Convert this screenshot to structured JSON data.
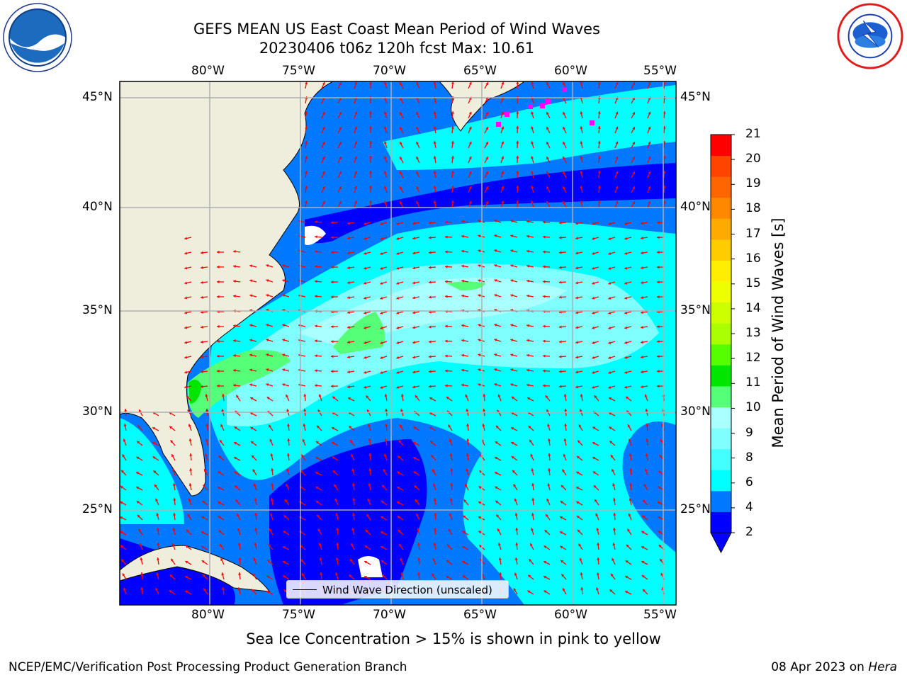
{
  "header": {
    "title_line1": "GEFS MEAN US East Coast Mean Period of Wind Waves",
    "title_line2": "20230406 t06z 120h fcst   Max: 10.61"
  },
  "logos": {
    "left": "noaa-logo",
    "right": "nws-logo"
  },
  "map": {
    "lon_ticks": [
      "80°W",
      "75°W",
      "70°W",
      "65°W",
      "60°W",
      "55°W"
    ],
    "lat_ticks": [
      "45°N",
      "40°N",
      "35°N",
      "30°N",
      "25°N"
    ],
    "land_color": "#efeddc",
    "arrow_color": "#ff0000",
    "ice_color": "#ff00ff"
  },
  "legend": {
    "label": "Wind Wave Direction (unscaled)"
  },
  "colorbar": {
    "title": "Mean Period of Wind Waves [s]",
    "ticks": [
      "21",
      "20",
      "19",
      "18",
      "17",
      "16",
      "15",
      "14",
      "13",
      "12",
      "11",
      "10",
      "9",
      "8",
      "6",
      "4",
      "2"
    ],
    "colors": [
      "#0000ff",
      "#0078ff",
      "#00ffff",
      "#44ffff",
      "#80ffff",
      "#aaffff",
      "#55ff77",
      "#00e600",
      "#55ff00",
      "#aaff00",
      "#ccff00",
      "#eeff00",
      "#ffee00",
      "#ffcc00",
      "#ffaa00",
      "#ff8800",
      "#ff6600",
      "#ff4400",
      "#ff0000"
    ]
  },
  "note": "Sea Ice Concentration > 15% is shown in pink to yellow",
  "footer": {
    "left": "NCEP/EMC/Verification Post Processing Product Generation Branch",
    "right_date": "08 Apr 2023 on ",
    "right_host": "Hera"
  }
}
